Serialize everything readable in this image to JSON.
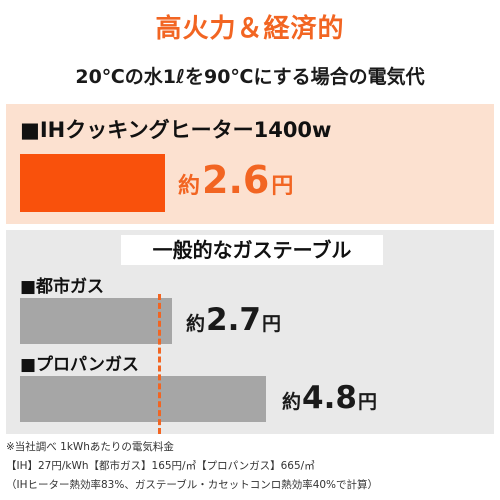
{
  "title": "高火力＆経済的",
  "subtitle": "20℃の水1ℓを90℃にする場合の電気代",
  "ih": {
    "heading": "■IHクッキングヒーター1400w",
    "price_prefix": "約",
    "price_value": "2.6",
    "price_unit": "円",
    "bar_color": "#f9510c"
  },
  "gas": {
    "heading": "一般的なガステーブル",
    "rows": [
      {
        "label": "■都市ガス",
        "price_prefix": "約",
        "price_value": "2.7",
        "price_unit": "円"
      },
      {
        "label": "■プロパンガス",
        "price_prefix": "約",
        "price_value": "4.8",
        "price_unit": "円"
      }
    ],
    "bar_color": "#a6a6a6",
    "reference_line_color": "#f26522"
  },
  "notes": [
    "※当社調べ 1kWhあたりの電気料金",
    "【IH】27円/kWh【都市ガス】165円/㎥【プロパンガス】665/㎥",
    "（IHヒーター熱効率83%、ガステーブル・カセットコンロ熱効率40%で計算）"
  ],
  "colors": {
    "accent": "#f26522",
    "ih_panel_bg": "#fce1d0",
    "gas_panel_bg": "#e9e9e9"
  }
}
